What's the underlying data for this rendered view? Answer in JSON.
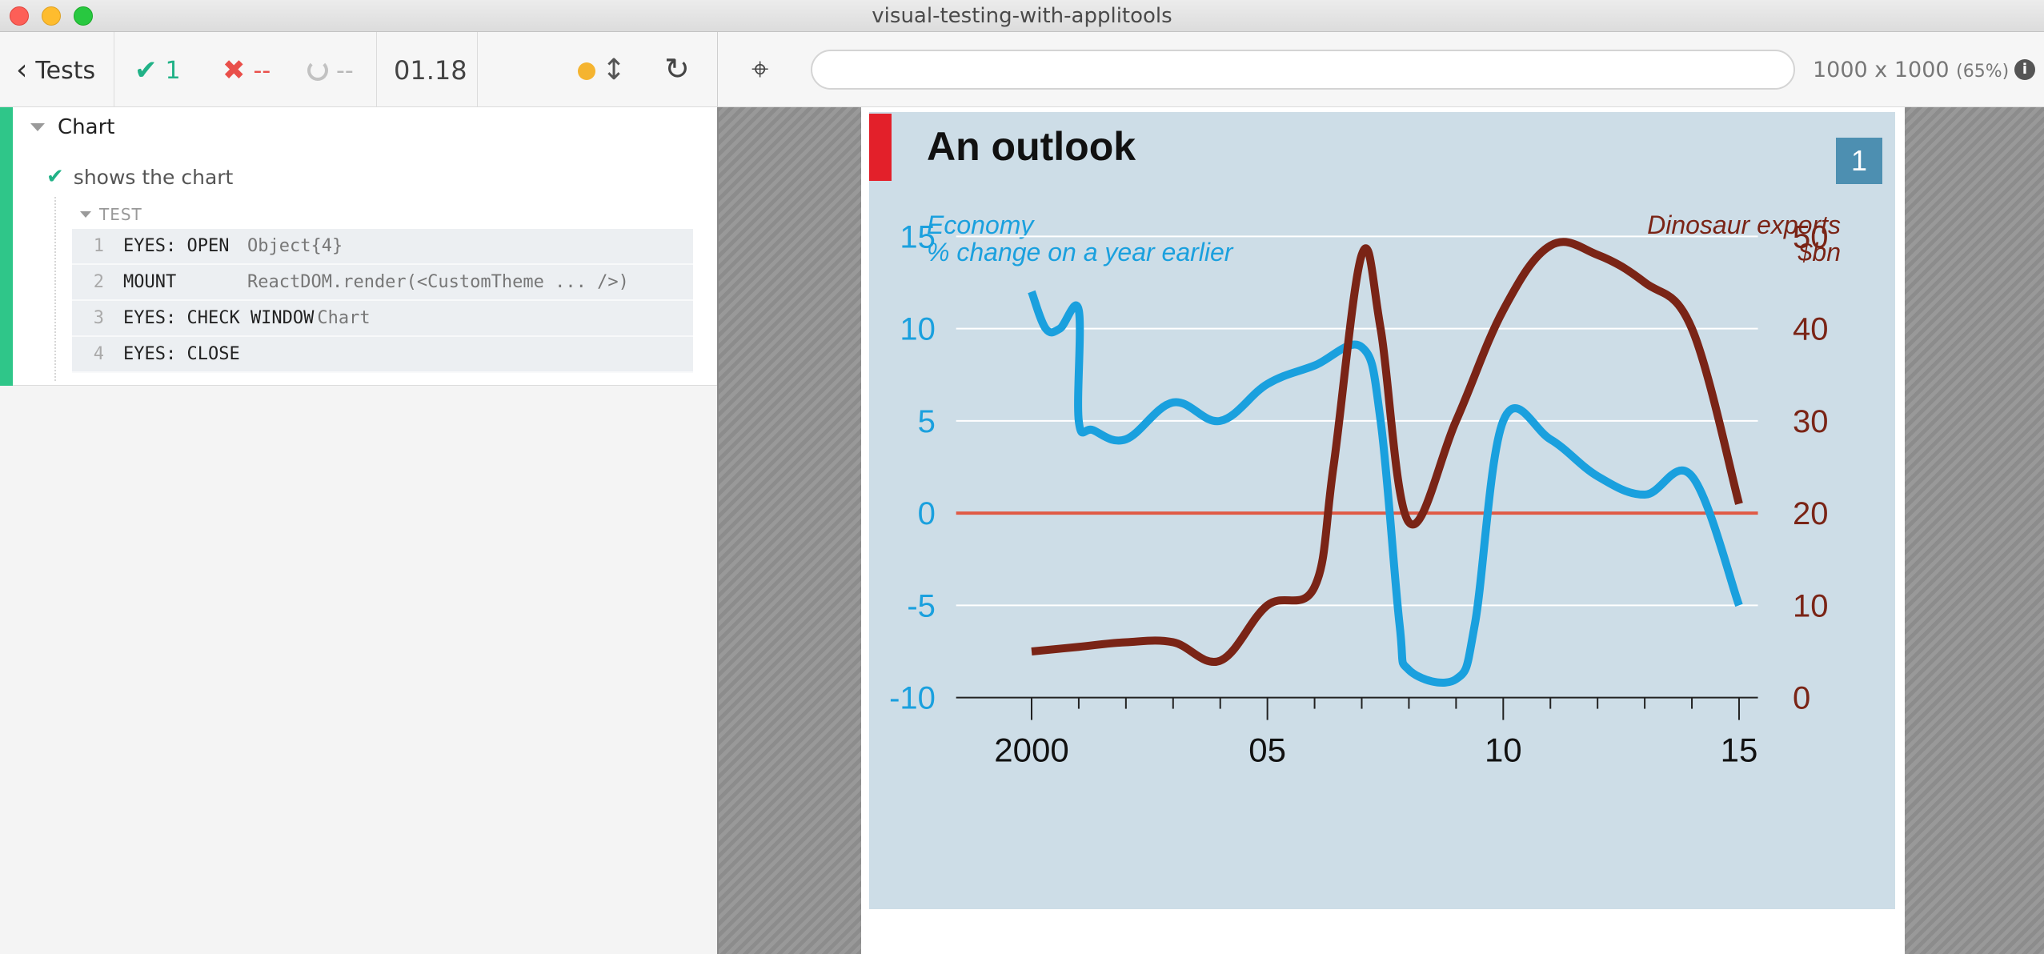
{
  "window": {
    "title": "visual-testing-with-applitools"
  },
  "reporter": {
    "back_label": "Tests",
    "passed": "1",
    "failed": "--",
    "pending": "--",
    "duration": "01.18",
    "suite_title": "Chart",
    "test_title": "shows the chart",
    "section_label": "TEST",
    "commands": [
      {
        "num": "1",
        "name": "EYES: OPEN",
        "message": "Object{4}"
      },
      {
        "num": "2",
        "name": "MOUNT",
        "message": "ReactDOM.render(<CustomTheme ... />)"
      },
      {
        "num": "3",
        "name": "EYES: CHECK WINDOW",
        "message": "Chart"
      },
      {
        "num": "4",
        "name": "EYES: CLOSE",
        "message": ""
      }
    ]
  },
  "aut": {
    "url": "",
    "viewport": "1000 x 1000",
    "zoom": "(65%)",
    "info": "i"
  },
  "colors": {
    "passed": "#21b287",
    "failed": "#e94f4a",
    "economy": "#1aa0de",
    "exports": "#7a2416",
    "zero_line": "#e05a45",
    "panel": "#cddde7"
  },
  "chart_data": {
    "type": "line",
    "title": "An outlook",
    "badge": "1",
    "left_axis_label": [
      "Economy",
      "% change on a year earlier"
    ],
    "right_axis_label": [
      "Dinosaur exports",
      "$bn"
    ],
    "left_ticks": [
      "15",
      "10",
      "5",
      "0",
      "-5",
      "-10"
    ],
    "right_ticks": [
      "50",
      "40",
      "30",
      "20",
      "10",
      "0"
    ],
    "x_ticks": [
      "2000",
      "05",
      "10",
      "15"
    ],
    "left_ylim": [
      -10,
      15
    ],
    "right_ylim": [
      0,
      50
    ],
    "xlim": [
      1999,
      2016
    ],
    "series": [
      {
        "name": "Economy",
        "axis": "left",
        "x": [
          2000,
          2000.3,
          2000.6,
          2001,
          2001,
          2001.3,
          2002,
          2003,
          2004,
          2005,
          2006,
          2007,
          2007.4,
          2007.8,
          2008,
          2009,
          2009.4,
          2010,
          2011,
          2012,
          2013,
          2014,
          2015
        ],
        "y": [
          12,
          10,
          10,
          11,
          5,
          4.5,
          4,
          6,
          5,
          7,
          8,
          9,
          5,
          -6,
          -8.5,
          -9,
          -6,
          5,
          4,
          2,
          1,
          2,
          -5
        ]
      },
      {
        "name": "Dinosaur exports",
        "axis": "right",
        "x": [
          2000,
          2001,
          2002,
          2003,
          2004,
          2005,
          2006,
          2006.4,
          2007,
          2007.4,
          2008,
          2009,
          2010,
          2011,
          2012,
          2013,
          2014,
          2015
        ],
        "y": [
          5,
          5.5,
          6,
          6,
          4,
          10,
          12,
          25,
          48,
          40,
          19,
          30,
          42,
          49,
          48,
          45,
          40,
          21
        ]
      }
    ]
  }
}
